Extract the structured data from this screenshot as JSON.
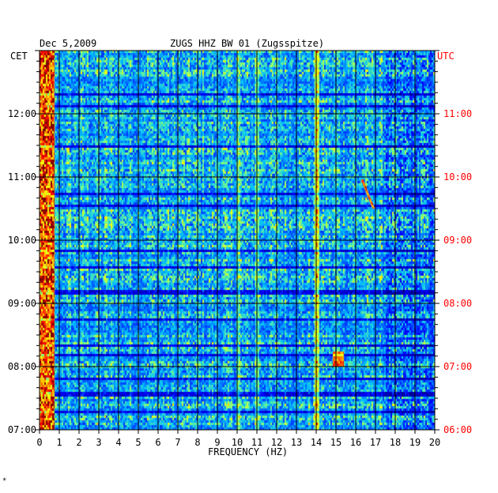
{
  "chart_data": {
    "type": "heatmap",
    "date": "Dec 5,2009",
    "title": "ZUGS HHZ BW 01 (Zugsspitze)",
    "left_axis_label": "CET",
    "right_axis_label": "UTC",
    "xlabel": "FREQUENCY (HZ)",
    "xlim": [
      0,
      20
    ],
    "x_ticks": [
      "0",
      "1",
      "2",
      "3",
      "4",
      "5",
      "6",
      "7",
      "8",
      "9",
      "10",
      "11",
      "12",
      "13",
      "14",
      "15",
      "16",
      "17",
      "18",
      "19",
      "20"
    ],
    "y_ticks_left": [
      "07:00",
      "08:00",
      "09:00",
      "10:00",
      "11:00",
      "12:00"
    ],
    "y_ticks_right": [
      "06:00",
      "07:00",
      "08:00",
      "09:00",
      "10:00",
      "11:00"
    ],
    "y_range_minutes": [
      420,
      780
    ],
    "colormap": [
      "#00007f",
      "#0000ff",
      "#00bfff",
      "#7fff7f",
      "#ffff00",
      "#ff7f00",
      "#ff0000",
      "#7f0000"
    ],
    "grid": true,
    "features": [
      {
        "name": "low-frequency band",
        "freq_hz": [
          0.1,
          0.7
        ],
        "intensity": "high"
      },
      {
        "name": "harmonic line",
        "freq_hz": 14.0,
        "time_min": [
          420,
          780
        ]
      },
      {
        "name": "harmonic line",
        "freq_hz": 10.0
      },
      {
        "name": "harmonic line",
        "freq_hz": 11.0
      },
      {
        "name": "transient event",
        "freq_hz": [
          14.8,
          15.4
        ],
        "time_min": [
          480,
          495
        ]
      },
      {
        "name": "chirp",
        "freq_hz": [
          16.3,
          16.9
        ],
        "time_min": [
          630,
          658
        ]
      }
    ]
  },
  "corner_mark": "*"
}
